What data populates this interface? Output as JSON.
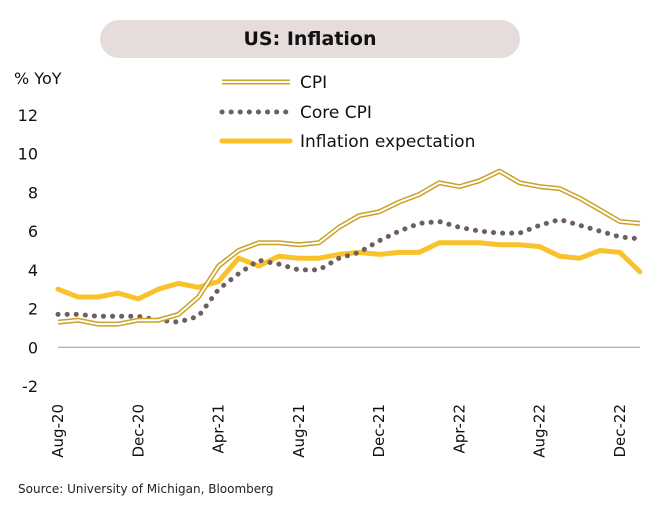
{
  "chart_data": {
    "type": "line",
    "title": "US: Inflation",
    "ylabel": "% YoY",
    "xlabel": "",
    "ylim": [
      -2,
      12
    ],
    "yticks": [
      -2,
      0,
      2,
      4,
      6,
      8,
      10,
      12
    ],
    "x": [
      "Aug-20",
      "Sep-20",
      "Oct-20",
      "Nov-20",
      "Dec-20",
      "Jan-21",
      "Feb-21",
      "Mar-21",
      "Apr-21",
      "May-21",
      "Jun-21",
      "Jul-21",
      "Aug-21",
      "Sep-21",
      "Oct-21",
      "Nov-21",
      "Dec-21",
      "Jan-22",
      "Feb-22",
      "Mar-22",
      "Apr-22",
      "May-22",
      "Jun-22",
      "Jul-22",
      "Aug-22",
      "Sep-22",
      "Oct-22",
      "Nov-22",
      "Dec-22",
      "Jan-23"
    ],
    "xtick_labels": [
      "Aug-20",
      "Dec-20",
      "Apr-21",
      "Aug-21",
      "Dec-21",
      "Apr-22",
      "Aug-22",
      "Dec-22"
    ],
    "legend_position": "top-center",
    "grid": false,
    "series": [
      {
        "name": "CPI",
        "style": "double-line",
        "color": "#c9a227",
        "values": [
          1.3,
          1.4,
          1.2,
          1.2,
          1.4,
          1.4,
          1.7,
          2.6,
          4.2,
          5.0,
          5.4,
          5.4,
          5.3,
          5.4,
          6.2,
          6.8,
          7.0,
          7.5,
          7.9,
          8.5,
          8.3,
          8.6,
          9.1,
          8.5,
          8.3,
          8.2,
          7.7,
          7.1,
          6.5,
          6.4
        ]
      },
      {
        "name": "Core CPI",
        "style": "dotted",
        "color": "#6e5f5f",
        "values": [
          1.7,
          1.7,
          1.6,
          1.6,
          1.6,
          1.4,
          1.3,
          1.6,
          3.0,
          3.8,
          4.5,
          4.3,
          4.0,
          4.0,
          4.6,
          4.9,
          5.5,
          6.0,
          6.4,
          6.5,
          6.2,
          6.0,
          5.9,
          5.9,
          6.3,
          6.6,
          6.3,
          6.0,
          5.7,
          5.6
        ]
      },
      {
        "name": "Inflation expectation",
        "style": "thick",
        "color": "#f9c12a",
        "values": [
          3.0,
          2.6,
          2.6,
          2.8,
          2.5,
          3.0,
          3.3,
          3.1,
          3.4,
          4.6,
          4.2,
          4.7,
          4.6,
          4.6,
          4.8,
          4.9,
          4.8,
          4.9,
          4.9,
          5.4,
          5.4,
          5.4,
          5.3,
          5.3,
          5.2,
          4.7,
          4.6,
          5.0,
          4.9,
          3.9
        ]
      }
    ]
  },
  "source": "Source: University of Michigan, Bloomberg"
}
